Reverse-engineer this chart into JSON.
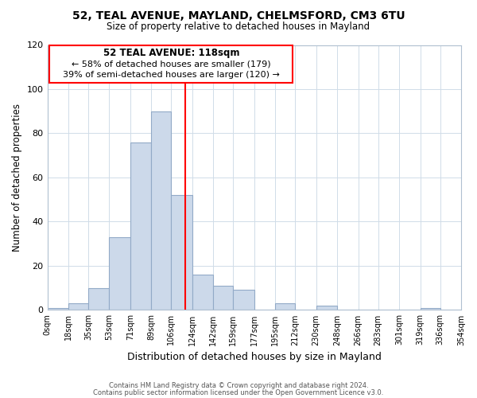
{
  "title": "52, TEAL AVENUE, MAYLAND, CHELMSFORD, CM3 6TU",
  "subtitle": "Size of property relative to detached houses in Mayland",
  "xlabel": "Distribution of detached houses by size in Mayland",
  "ylabel": "Number of detached properties",
  "bar_color": "#ccd9ea",
  "bar_edge_color": "#92aac7",
  "reference_line_x": 118,
  "bin_edges": [
    0,
    18,
    35,
    53,
    71,
    89,
    106,
    124,
    142,
    159,
    177,
    195,
    212,
    230,
    248,
    266,
    283,
    301,
    319,
    336,
    354
  ],
  "bar_heights": [
    1,
    3,
    10,
    33,
    76,
    90,
    52,
    16,
    11,
    9,
    0,
    3,
    0,
    2,
    0,
    0,
    0,
    0,
    1,
    0
  ],
  "tick_labels": [
    "0sqm",
    "18sqm",
    "35sqm",
    "53sqm",
    "71sqm",
    "89sqm",
    "106sqm",
    "124sqm",
    "142sqm",
    "159sqm",
    "177sqm",
    "195sqm",
    "212sqm",
    "230sqm",
    "248sqm",
    "266sqm",
    "283sqm",
    "301sqm",
    "319sqm",
    "336sqm",
    "354sqm"
  ],
  "ylim": [
    0,
    120
  ],
  "yticks": [
    0,
    20,
    40,
    60,
    80,
    100,
    120
  ],
  "annotation_title": "52 TEAL AVENUE: 118sqm",
  "annotation_line1": "← 58% of detached houses are smaller (179)",
  "annotation_line2": "39% of semi-detached houses are larger (120) →",
  "footer1": "Contains HM Land Registry data © Crown copyright and database right 2024.",
  "footer2": "Contains public sector information licensed under the Open Government Licence v3.0.",
  "background_color": "#ffffff",
  "grid_color": "#d0dce8"
}
